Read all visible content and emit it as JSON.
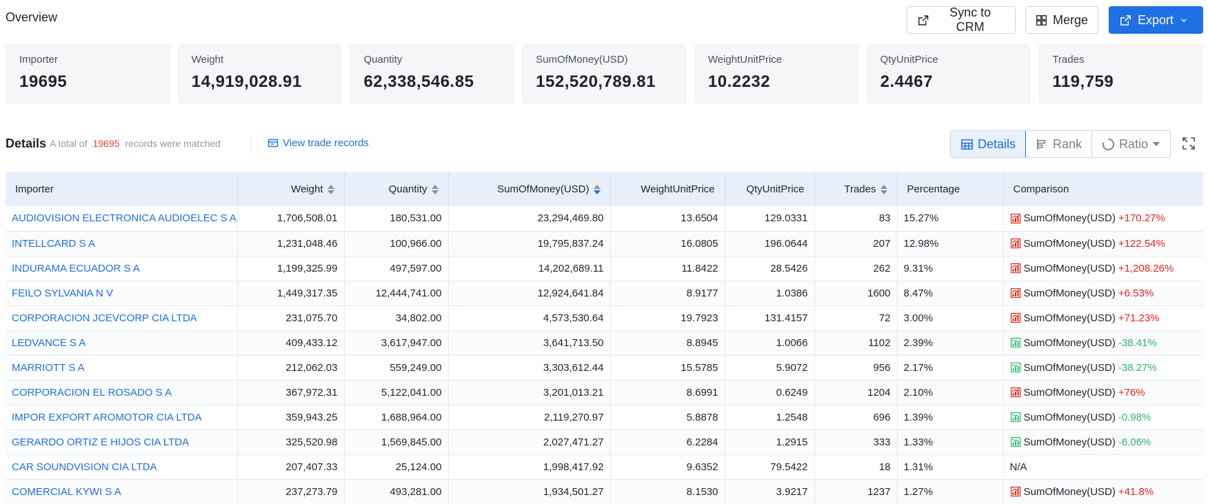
{
  "header": {
    "title": "Overview",
    "sync_label": "Sync to CRM",
    "merge_label": "Merge",
    "export_label": "Export"
  },
  "overview": [
    {
      "label": "Importer",
      "value": "19695"
    },
    {
      "label": "Weight",
      "value": "14,919,028.91"
    },
    {
      "label": "Quantity",
      "value": "62,338,546.85"
    },
    {
      "label": "SumOfMoney(USD)",
      "value": "152,520,789.81"
    },
    {
      "label": "WeightUnitPrice",
      "value": "10.2232"
    },
    {
      "label": "QtyUnitPrice",
      "value": "2.4467"
    },
    {
      "label": "Trades",
      "value": "119,759"
    }
  ],
  "details": {
    "title": "Details",
    "sub_prefix": "A total of",
    "count": "19695",
    "sub_suffix": "records were matched",
    "view_link": "View trade records",
    "tabs": {
      "details": "Details",
      "rank": "Rank",
      "ratio": "Ratio"
    }
  },
  "table": {
    "columns": [
      "Importer",
      "Weight",
      "Quantity",
      "SumOfMoney(USD)",
      "WeightUnitPrice",
      "QtyUnitPrice",
      "Trades",
      "Percentage",
      "Comparison"
    ],
    "comparison_label": "SumOfMoney(USD)",
    "rows": [
      {
        "importer": "AUDIOVISION ELECTRONICA AUDIOELEC S A",
        "weight": "1,706,508.01",
        "quantity": "180,531.00",
        "sum": "23,294,469.80",
        "wup": "13.6504",
        "qup": "129.0331",
        "trades": "83",
        "pct": "15.27%",
        "change": "+170.27%",
        "trend": "up"
      },
      {
        "importer": "INTELLCARD S A",
        "weight": "1,231,048.46",
        "quantity": "100,966.00",
        "sum": "19,795,837.24",
        "wup": "16.0805",
        "qup": "196.0644",
        "trades": "207",
        "pct": "12.98%",
        "change": "+122.54%",
        "trend": "up"
      },
      {
        "importer": "INDURAMA ECUADOR S A",
        "weight": "1,199,325.99",
        "quantity": "497,597.00",
        "sum": "14,202,689.11",
        "wup": "11.8422",
        "qup": "28.5426",
        "trades": "262",
        "pct": "9.31%",
        "change": "+1,208.26%",
        "trend": "up"
      },
      {
        "importer": "FEILO SYLVANIA N V",
        "weight": "1,449,317.35",
        "quantity": "12,444,741.00",
        "sum": "12,924,641.84",
        "wup": "8.9177",
        "qup": "1.0386",
        "trades": "1600",
        "pct": "8.47%",
        "change": "+6.53%",
        "trend": "up"
      },
      {
        "importer": "CORPORACION JCEVCORP CIA LTDA",
        "weight": "231,075.70",
        "quantity": "34,802.00",
        "sum": "4,573,530.64",
        "wup": "19.7923",
        "qup": "131.4157",
        "trades": "72",
        "pct": "3.00%",
        "change": "+71.23%",
        "trend": "up"
      },
      {
        "importer": "LEDVANCE S A",
        "weight": "409,433.12",
        "quantity": "3,617,947.00",
        "sum": "3,641,713.50",
        "wup": "8.8945",
        "qup": "1.0066",
        "trades": "1102",
        "pct": "2.39%",
        "change": "-38.41%",
        "trend": "down"
      },
      {
        "importer": "MARRIOTT S A",
        "weight": "212,062.03",
        "quantity": "559,249.00",
        "sum": "3,303,612.44",
        "wup": "15.5785",
        "qup": "5.9072",
        "trades": "956",
        "pct": "2.17%",
        "change": "-38.27%",
        "trend": "down"
      },
      {
        "importer": "CORPORACION EL ROSADO S A",
        "weight": "367,972.31",
        "quantity": "5,122,041.00",
        "sum": "3,201,013.21",
        "wup": "8.6991",
        "qup": "0.6249",
        "trades": "1204",
        "pct": "2.10%",
        "change": "+76%",
        "trend": "up"
      },
      {
        "importer": "IMPOR EXPORT AROMOTOR CIA LTDA",
        "weight": "359,943.25",
        "quantity": "1,688,964.00",
        "sum": "2,119,270.97",
        "wup": "5.8878",
        "qup": "1.2548",
        "trades": "696",
        "pct": "1.39%",
        "change": "-0.98%",
        "trend": "down"
      },
      {
        "importer": "GERARDO ORTIZ E HIJOS CIA LTDA",
        "weight": "325,520.98",
        "quantity": "1,569,845.00",
        "sum": "2,027,471.27",
        "wup": "6.2284",
        "qup": "1.2915",
        "trades": "333",
        "pct": "1.33%",
        "change": "-6.06%",
        "trend": "down"
      },
      {
        "importer": "CAR SOUNDVISION CIA LTDA",
        "weight": "207,407.33",
        "quantity": "25,124.00",
        "sum": "1,998,417.92",
        "wup": "9.6352",
        "qup": "79.5422",
        "trades": "18",
        "pct": "1.31%",
        "change": "N/A",
        "trend": "na"
      },
      {
        "importer": "COMERCIAL KYWI S A",
        "weight": "237,273.79",
        "quantity": "493,281.00",
        "sum": "1,934,501.27",
        "wup": "8.1530",
        "qup": "3.9217",
        "trades": "1237",
        "pct": "1.27%",
        "change": "+41.8%",
        "trend": "up"
      }
    ]
  },
  "colors": {
    "accent": "#1f6fe5",
    "positive": "#e5231b",
    "negative": "#2fb66b",
    "count": "#e5423a"
  }
}
